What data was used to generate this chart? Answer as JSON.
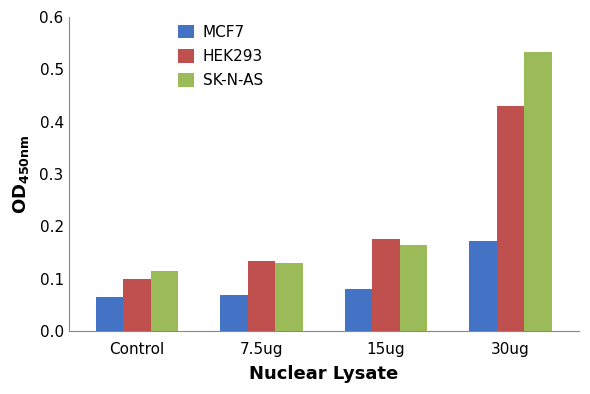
{
  "categories": [
    "Control",
    "7.5ug",
    "15ug",
    "30ug"
  ],
  "series": {
    "MCF7": [
      0.066,
      0.07,
      0.08,
      0.172
    ],
    "HEK293": [
      0.1,
      0.134,
      0.177,
      0.43
    ],
    "SK-N-AS": [
      0.115,
      0.13,
      0.165,
      0.534
    ]
  },
  "colors": {
    "MCF7": "#4472C4",
    "HEK293": "#C0504D",
    "SK-N-AS": "#9BBB59"
  },
  "legend_labels": [
    "MCF7",
    "HEK293",
    "SK-N-AS"
  ],
  "xlabel": "Nuclear Lysate",
  "ylim": [
    0,
    0.6
  ],
  "yticks": [
    0,
    0.1,
    0.2,
    0.3,
    0.4,
    0.5,
    0.6
  ],
  "bar_width": 0.22,
  "background_color": "#ffffff",
  "axis_label_fontsize": 13,
  "tick_fontsize": 11,
  "legend_fontsize": 11
}
